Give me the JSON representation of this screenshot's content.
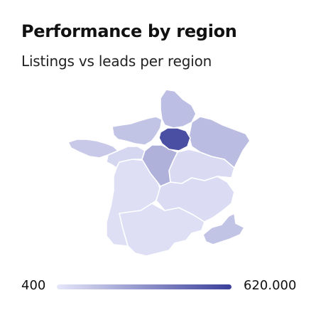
{
  "title": "Performance by region",
  "subtitle": "Listings vs leads per region",
  "legend": {
    "min_label": "400",
    "max_label": "620.000",
    "min_value": 400,
    "max_value": 620000,
    "color_low": "#e6e7fa",
    "color_high": "#3a3f9a"
  },
  "regions": [
    {
      "id": "hauts-de-france",
      "value": 150000
    },
    {
      "id": "normandie",
      "value": 130000
    },
    {
      "id": "grand-est",
      "value": 160000
    },
    {
      "id": "ile-de-france",
      "value": 560000
    },
    {
      "id": "bretagne",
      "value": 110000
    },
    {
      "id": "pays-de-la-loire",
      "value": 60000
    },
    {
      "id": "centre-val-de-loire",
      "value": 200000
    },
    {
      "id": "bourgogne-franche-comte",
      "value": 45000
    },
    {
      "id": "nouvelle-aquitaine",
      "value": 30000
    },
    {
      "id": "auvergne-rhone-alpes",
      "value": 40000
    },
    {
      "id": "occitanie",
      "value": 30000
    },
    {
      "id": "provence-alpes-cote-dazur",
      "value": 130000
    }
  ]
}
